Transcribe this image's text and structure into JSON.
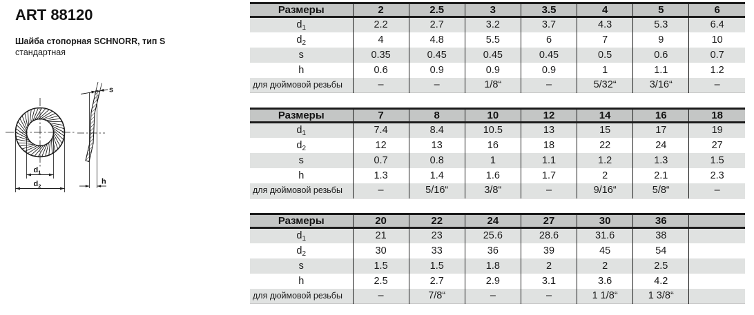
{
  "header": {
    "title": "ART 88120",
    "subtitle_line1": "Шайба стопорная SCHNORR, тип S",
    "subtitle_line2": "стандартная"
  },
  "drawing": {
    "dim_d1": {
      "base": "d",
      "sub": "1"
    },
    "dim_d2": {
      "base": "d",
      "sub": "2"
    },
    "dim_s": "s",
    "dim_h": "h"
  },
  "colors": {
    "header_bg": "#c4c6c5",
    "row_alt_bg": "#e0e2e1",
    "border": "#1b1b1b",
    "text": "#1b1b1b"
  },
  "tables": [
    {
      "corner_label": "Размеры",
      "sizes": [
        "2",
        "2.5",
        "3",
        "3.5",
        "4",
        "5",
        "6"
      ],
      "rows": [
        {
          "key": "d1",
          "label": "d",
          "sub": "1",
          "values": [
            "2.2",
            "2.7",
            "3.2",
            "3.7",
            "4.3",
            "5.3",
            "6.4"
          ]
        },
        {
          "key": "d2",
          "label": "d",
          "sub": "2",
          "values": [
            "4",
            "4.8",
            "5.5",
            "6",
            "7",
            "9",
            "10"
          ]
        },
        {
          "key": "s",
          "label": "s",
          "values": [
            "0.35",
            "0.45",
            "0.45",
            "0.45",
            "0.5",
            "0.6",
            "0.7"
          ]
        },
        {
          "key": "h",
          "label": "h",
          "values": [
            "0.6",
            "0.9",
            "0.9",
            "0.9",
            "1",
            "1.1",
            "1.2"
          ]
        },
        {
          "key": "inch",
          "label": "для дюймовой резьбы",
          "values": [
            "–",
            "–",
            "1/8“",
            "–",
            "5/32“",
            "3/16“",
            "–"
          ]
        }
      ]
    },
    {
      "corner_label": "Размеры",
      "sizes": [
        "7",
        "8",
        "10",
        "12",
        "14",
        "16",
        "18"
      ],
      "rows": [
        {
          "key": "d1",
          "label": "d",
          "sub": "1",
          "values": [
            "7.4",
            "8.4",
            "10.5",
            "13",
            "15",
            "17",
            "19"
          ]
        },
        {
          "key": "d2",
          "label": "d",
          "sub": "2",
          "values": [
            "12",
            "13",
            "16",
            "18",
            "22",
            "24",
            "27"
          ]
        },
        {
          "key": "s",
          "label": "s",
          "values": [
            "0.7",
            "0.8",
            "1",
            "1.1",
            "1.2",
            "1.3",
            "1.5"
          ]
        },
        {
          "key": "h",
          "label": "h",
          "values": [
            "1.3",
            "1.4",
            "1.6",
            "1.7",
            "2",
            "2.1",
            "2.3"
          ]
        },
        {
          "key": "inch",
          "label": "для дюймовой резьбы",
          "values": [
            "–",
            "5/16“",
            "3/8“",
            "–",
            "9/16“",
            "5/8“",
            "–"
          ]
        }
      ]
    },
    {
      "corner_label": "Размеры",
      "sizes": [
        "20",
        "22",
        "24",
        "27",
        "30",
        "36",
        ""
      ],
      "rows": [
        {
          "key": "d1",
          "label": "d",
          "sub": "1",
          "values": [
            "21",
            "23",
            "25.6",
            "28.6",
            "31.6",
            "38",
            ""
          ]
        },
        {
          "key": "d2",
          "label": "d",
          "sub": "2",
          "values": [
            "30",
            "33",
            "36",
            "39",
            "45",
            "54",
            ""
          ]
        },
        {
          "key": "s",
          "label": "s",
          "values": [
            "1.5",
            "1.5",
            "1.8",
            "2",
            "2",
            "2.5",
            ""
          ]
        },
        {
          "key": "h",
          "label": "h",
          "values": [
            "2.5",
            "2.7",
            "2.9",
            "3.1",
            "3.6",
            "4.2",
            ""
          ]
        },
        {
          "key": "inch",
          "label": "для дюймовой резьбы",
          "values": [
            "–",
            "7/8“",
            "–",
            "–",
            "1 1/8“",
            "1 3/8“",
            ""
          ]
        }
      ]
    }
  ]
}
